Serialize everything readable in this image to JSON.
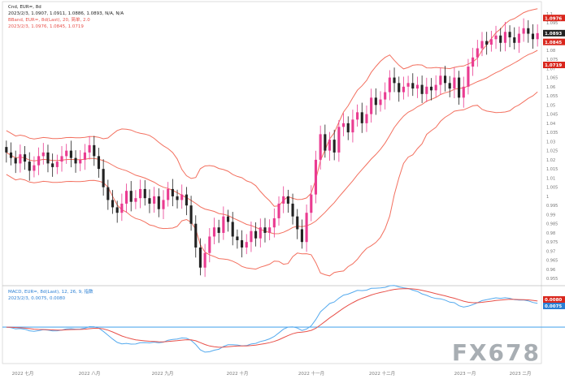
{
  "chart_data": [
    {
      "type": "candlestick",
      "panel": "price",
      "legend": {
        "symbol_line": "Cnd, EUR=, 8d",
        "ohlc_line": "2023/2/3, 1.0907, 1.0911, 1.0886, 1.0893, N/A, N/A",
        "bb_line": "BBand, EUR=, 8d(Last), 20, 简单, 2.0",
        "bb_values_line": "2023/2/3, 1.0976, 1.0845, 1.0719"
      },
      "price_labels": {
        "last": "1.0893",
        "upper": "1.0976",
        "mid": "1.0845",
        "lower": "1.0719"
      },
      "y_ticks": [
        "1.1",
        "1.095",
        "1.09",
        "1.085",
        "1.08",
        "1.075",
        "1.07",
        "1.065",
        "1.06",
        "1.055",
        "1.05",
        "1.045",
        "1.04",
        "1.035",
        "1.03",
        "1.025",
        "1.02",
        "1.015",
        "1.01",
        "1.005",
        "1",
        "0.995",
        "0.99",
        "0.985",
        "0.98",
        "0.975",
        "0.97",
        "0.965",
        "0.96",
        "0.955"
      ],
      "ylim": [
        0.952,
        1.103
      ],
      "close": [
        1.024,
        1.021,
        1.018,
        1.023,
        1.019,
        1.014,
        1.017,
        1.022,
        1.024,
        1.018,
        1.016,
        1.019,
        1.022,
        1.025,
        1.021,
        1.018,
        1.02,
        1.024,
        1.028,
        1.022,
        1.015,
        1.005,
        0.998,
        0.994,
        0.991,
        0.996,
        1.003,
        0.997,
        0.999,
        1.004,
        0.999,
        0.996,
        1.0,
        0.993,
        0.998,
        1.004,
        1.0,
        0.998,
        1.001,
        0.995,
        0.985,
        0.972,
        0.961,
        0.969,
        0.978,
        0.983,
        0.98,
        0.989,
        0.986,
        0.978,
        0.976,
        0.972,
        0.975,
        0.981,
        0.977,
        0.983,
        0.98,
        0.983,
        0.988,
        0.996,
        1.0,
        0.996,
        0.989,
        0.982,
        0.975,
        0.991,
        1.001,
        1.02,
        1.034,
        1.025,
        1.031,
        1.024,
        1.038,
        1.04,
        1.035,
        1.042,
        1.046,
        1.04,
        1.045,
        1.054,
        1.05,
        1.053,
        1.057,
        1.065,
        1.062,
        1.057,
        1.06,
        1.062,
        1.059,
        1.061,
        1.056,
        1.06,
        1.058,
        1.061,
        1.066,
        1.062,
        1.059,
        1.065,
        1.054,
        1.06,
        1.071,
        1.076,
        1.081,
        1.085,
        1.083,
        1.086,
        1.088,
        1.084,
        1.09,
        1.087,
        1.084,
        1.089,
        1.092,
        1.089,
        1.086,
        1.0893
      ],
      "macd": {
        "legend_line": "MACD, EUR=, 8d(Last), 12, 26, 9, 指数",
        "values_line": "2023/2/3, 0.0075, 0.0080",
        "macd_label": "0.0080",
        "signal_label": "0.0075",
        "ylim": [
          -0.013,
          0.014
        ]
      }
    }
  ],
  "x_axis_labels": [
    "2022 七月",
    "2022 八月",
    "2022 九月",
    "2022 十月",
    "2022 十一月",
    "2022 十二月",
    "2023 一月",
    "2023 二月"
  ],
  "colors": {
    "candle_up": "#ea3b91",
    "candle_down": "#222222",
    "bollinger": "#f3705f",
    "macd_line": "#55aaee",
    "signal_line": "#e8514a",
    "zero_line": "#55aaee",
    "tag_red": "#d9261c",
    "tag_dark": "#222222",
    "tag_blue": "#2a7fd4"
  },
  "watermark": "FX678"
}
